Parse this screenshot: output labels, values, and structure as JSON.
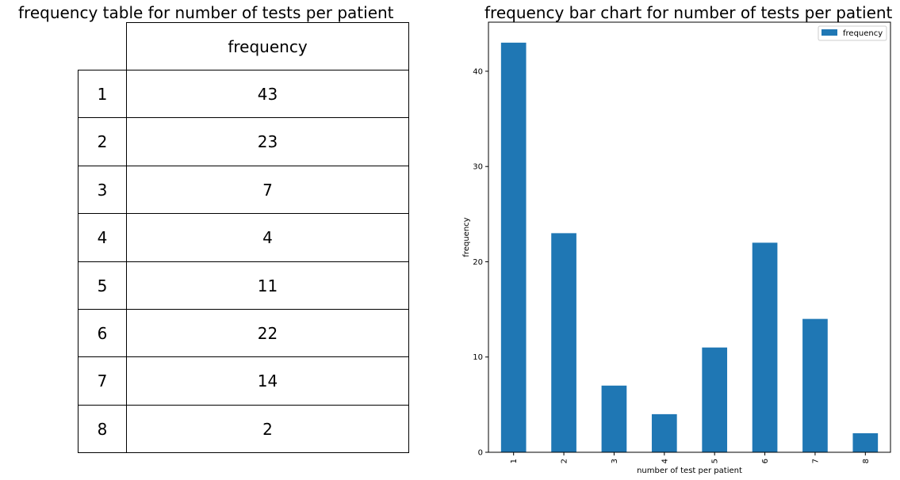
{
  "table": {
    "title": "frequency table for number of tests per patient",
    "column_header": "frequency",
    "rows": [
      {
        "index": "1",
        "value": "43"
      },
      {
        "index": "2",
        "value": "23"
      },
      {
        "index": "3",
        "value": "7"
      },
      {
        "index": "4",
        "value": "4"
      },
      {
        "index": "5",
        "value": "11"
      },
      {
        "index": "6",
        "value": "22"
      },
      {
        "index": "7",
        "value": "14"
      },
      {
        "index": "8",
        "value": "2"
      }
    ]
  },
  "chart_data": [
    {
      "type": "table",
      "title": "frequency table for number of tests per patient",
      "columns": [
        "frequency"
      ],
      "rows": [
        "1",
        "2",
        "3",
        "4",
        "5",
        "6",
        "7",
        "8"
      ],
      "values": [
        43,
        23,
        7,
        4,
        11,
        22,
        14,
        2
      ]
    },
    {
      "type": "bar",
      "title": "frequency bar chart for number of tests per patient",
      "xlabel": "number of test per patient",
      "ylabel": "frequency",
      "categories": [
        "1",
        "2",
        "3",
        "4",
        "5",
        "6",
        "7",
        "8"
      ],
      "series": [
        {
          "name": "frequency",
          "values": [
            43,
            23,
            7,
            4,
            11,
            22,
            14,
            2
          ],
          "color": "#1f77b4"
        }
      ],
      "yticks": [
        0,
        10,
        20,
        30,
        40
      ],
      "ylim": [
        0,
        45.15
      ],
      "grid": false,
      "legend": "top-right"
    }
  ]
}
